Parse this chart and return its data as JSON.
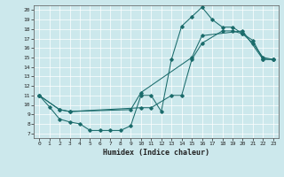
{
  "xlabel": "Humidex (Indice chaleur)",
  "bg_color": "#cce8ec",
  "line_color": "#1a6b6b",
  "xlim": [
    -0.5,
    23.5
  ],
  "ylim": [
    6.5,
    20.5
  ],
  "xticks": [
    0,
    1,
    2,
    3,
    4,
    5,
    6,
    7,
    8,
    9,
    10,
    11,
    12,
    13,
    14,
    15,
    16,
    17,
    18,
    19,
    20,
    21,
    22,
    23
  ],
  "yticks": [
    7,
    8,
    9,
    10,
    11,
    12,
    13,
    14,
    15,
    16,
    17,
    18,
    19,
    20
  ],
  "line1_x": [
    0,
    1,
    2,
    3,
    4,
    5,
    6,
    7,
    8,
    9,
    10,
    11,
    12,
    13,
    14,
    15,
    16,
    17,
    18,
    19,
    20,
    21,
    22,
    23
  ],
  "line1_y": [
    11.0,
    9.8,
    8.5,
    8.2,
    8.0,
    7.3,
    7.3,
    7.3,
    7.3,
    7.8,
    11.0,
    11.0,
    9.3,
    14.8,
    18.3,
    19.3,
    20.3,
    19.0,
    18.2,
    18.2,
    17.5,
    16.5,
    15.0,
    14.8
  ],
  "line2_x": [
    0,
    2,
    3,
    10,
    11,
    13,
    14,
    15,
    16,
    18,
    19,
    20,
    21,
    22,
    23
  ],
  "line2_y": [
    11.0,
    9.5,
    9.3,
    9.7,
    9.7,
    11.0,
    11.0,
    14.8,
    16.5,
    17.8,
    17.8,
    17.5,
    16.8,
    14.8,
    14.8
  ],
  "line3_x": [
    0,
    2,
    3,
    9,
    10,
    15,
    16,
    20,
    22,
    23
  ],
  "line3_y": [
    11.0,
    9.5,
    9.3,
    9.5,
    11.3,
    15.0,
    17.3,
    17.8,
    14.8,
    14.8
  ]
}
